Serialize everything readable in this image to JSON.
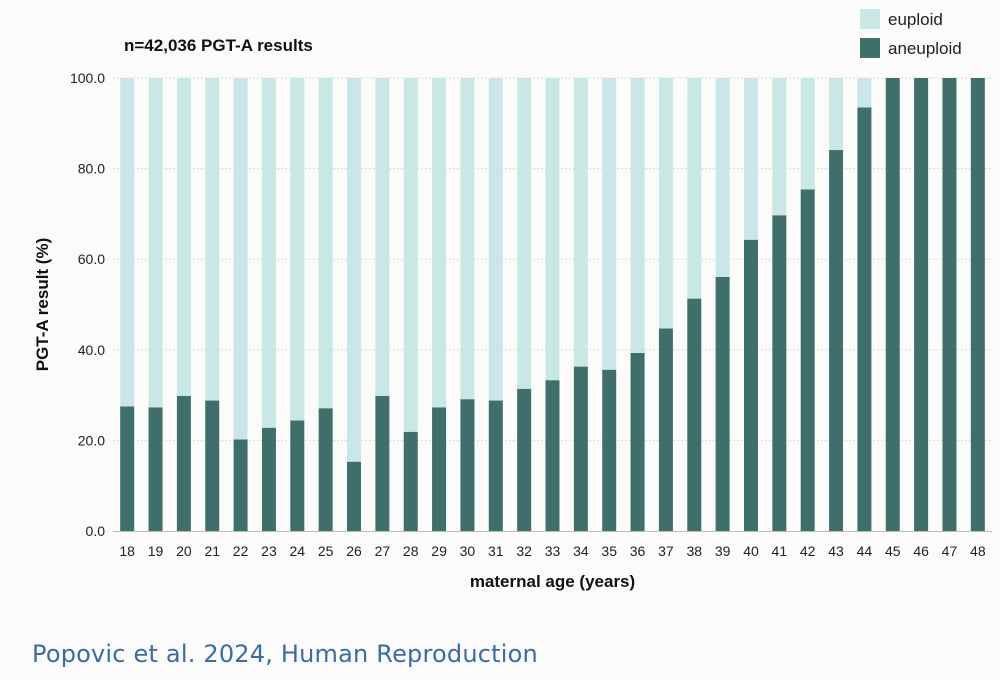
{
  "chart_data": {
    "type": "bar",
    "stacked": true,
    "title": "n=42,036 PGT-A results",
    "xlabel": "maternal age (years)",
    "ylabel": "PGT-A result (%)",
    "ylim": [
      0,
      100
    ],
    "yticks": [
      "0.0",
      "20.0",
      "40.0",
      "60.0",
      "80.0",
      "100.0"
    ],
    "grid": true,
    "legend_position": "top-right",
    "categories": [
      "18",
      "19",
      "20",
      "21",
      "22",
      "23",
      "24",
      "25",
      "26",
      "27",
      "28",
      "29",
      "30",
      "31",
      "32",
      "33",
      "34",
      "35",
      "36",
      "37",
      "38",
      "39",
      "40",
      "41",
      "42",
      "43",
      "44",
      "45",
      "46",
      "47",
      "48"
    ],
    "series": [
      {
        "name": "aneuploid",
        "color": "#3f6f6b",
        "values": [
          27.5,
          27.3,
          29.8,
          28.8,
          20.2,
          22.8,
          24.4,
          27.1,
          15.3,
          29.8,
          21.9,
          27.3,
          29.1,
          28.8,
          31.4,
          33.3,
          36.3,
          35.6,
          39.3,
          44.7,
          51.3,
          56.1,
          64.3,
          69.7,
          75.4,
          84.1,
          93.5,
          100,
          100,
          100,
          100
        ]
      },
      {
        "name": "euploid",
        "color": "#c9e8e5",
        "values": [
          72.5,
          72.7,
          70.2,
          71.2,
          79.8,
          77.2,
          75.6,
          72.9,
          84.7,
          70.2,
          78.1,
          72.7,
          70.9,
          71.2,
          68.6,
          66.7,
          63.7,
          64.4,
          60.7,
          55.3,
          48.7,
          43.9,
          35.7,
          30.3,
          24.6,
          15.9,
          6.5,
          0,
          0,
          0,
          0
        ]
      }
    ]
  },
  "citation": "Popovic et al. 2024, Human Reproduction"
}
